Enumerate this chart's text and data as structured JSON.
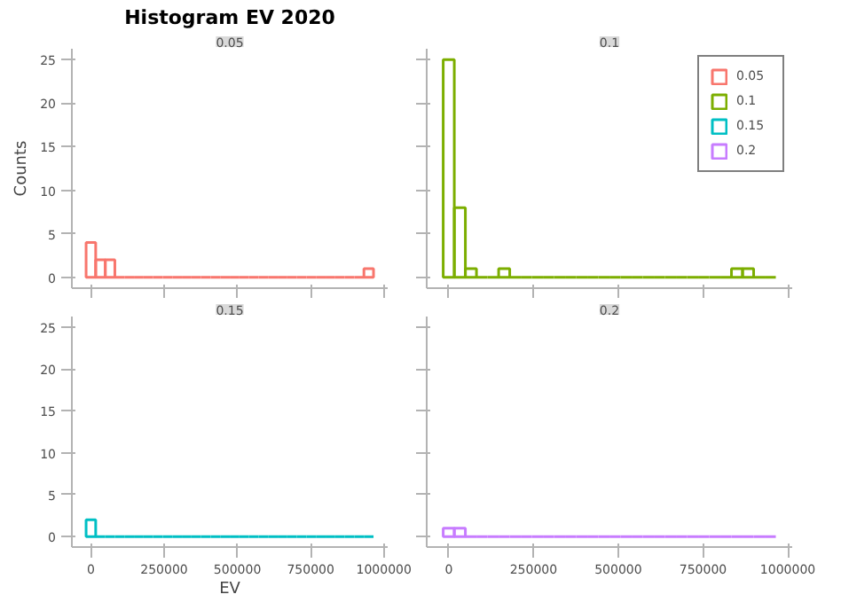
{
  "chart_data": [
    {
      "type": "histogram",
      "title": "Histogram EV 2020",
      "subtitle": "0.05",
      "ylabel": "Counts",
      "bins": [
        -16350,
        16350,
        49050,
        81750,
        114450,
        147150,
        179850,
        212550,
        245250,
        277950,
        310650,
        343350,
        376050,
        408750,
        441450,
        474150,
        506850,
        539550,
        572250,
        604950,
        637650,
        670350,
        703050,
        735750,
        768450,
        801150,
        833850,
        866550,
        899250,
        931950,
        964650
      ],
      "series": [
        {
          "name": "0.05",
          "color": "#f8766d",
          "values": [
            4,
            2,
            2,
            0,
            0,
            0,
            0,
            0,
            0,
            0,
            0,
            0,
            0,
            0,
            0,
            0,
            0,
            0,
            0,
            0,
            0,
            0,
            0,
            0,
            0,
            0,
            0,
            0,
            0,
            1
          ]
        }
      ],
      "xlim": [
        -65000,
        1013000
      ],
      "ylim": [
        -1.25,
        26.25
      ],
      "xticks": [
        0,
        250000,
        500000,
        750000,
        1000000
      ],
      "yticks": [
        0,
        5,
        10,
        15,
        20,
        25
      ],
      "tick_labels": "y",
      "grid": false
    },
    {
      "type": "histogram",
      "subtitle": "0.1",
      "legend": "top right",
      "bins": [
        -16350,
        16350,
        49050,
        81750,
        114450,
        147150,
        179850,
        212550,
        245250,
        277950,
        310650,
        343350,
        376050,
        408750,
        441450,
        474150,
        506850,
        539550,
        572250,
        604950,
        637650,
        670350,
        703050,
        735750,
        768450,
        801150,
        833850,
        866550,
        899250,
        931950,
        964650
      ],
      "series": [
        {
          "name": "0.1",
          "color": "#7cae00",
          "values": [
            25,
            8,
            1,
            0,
            0,
            1,
            0,
            0,
            0,
            0,
            0,
            0,
            0,
            0,
            0,
            0,
            0,
            0,
            0,
            0,
            0,
            0,
            0,
            0,
            0,
            0,
            1,
            1,
            0,
            0
          ]
        }
      ],
      "xlim": [
        -65000,
        1013000
      ],
      "ylim": [
        -1.25,
        26.25
      ],
      "xticks": [
        0,
        250000,
        500000,
        750000,
        1000000
      ],
      "yticks": [
        0,
        5,
        10,
        15,
        20,
        25
      ],
      "tick_labels": false,
      "grid": false
    },
    {
      "type": "histogram",
      "subtitle": "0.15",
      "xlabel": "EV",
      "bins": [
        -16350,
        16350,
        49050,
        81750,
        114450,
        147150,
        179850,
        212550,
        245250,
        277950,
        310650,
        343350,
        376050,
        408750,
        441450,
        474150,
        506850,
        539550,
        572250,
        604950,
        637650,
        670350,
        703050,
        735750,
        768450,
        801150,
        833850,
        866550,
        899250,
        931950,
        964650
      ],
      "series": [
        {
          "name": "0.15",
          "color": "#00bfc4",
          "values": [
            2,
            0,
            0,
            0,
            0,
            0,
            0,
            0,
            0,
            0,
            0,
            0,
            0,
            0,
            0,
            0,
            0,
            0,
            0,
            0,
            0,
            0,
            0,
            0,
            0,
            0,
            0,
            0,
            0,
            0
          ]
        }
      ],
      "xlim": [
        -65000,
        1013000
      ],
      "ylim": [
        -1.25,
        26.25
      ],
      "xticks": [
        0,
        250000,
        500000,
        750000,
        1000000
      ],
      "yticks": [
        0,
        5,
        10,
        15,
        20,
        25
      ],
      "grid": false
    },
    {
      "type": "histogram",
      "subtitle": "0.2",
      "bins": [
        -16350,
        16350,
        49050,
        81750,
        114450,
        147150,
        179850,
        212550,
        245250,
        277950,
        310650,
        343350,
        376050,
        408750,
        441450,
        474150,
        506850,
        539550,
        572250,
        604950,
        637650,
        670350,
        703050,
        735750,
        768450,
        801150,
        833850,
        866550,
        899250,
        931950,
        964650
      ],
      "series": [
        {
          "name": "0.2",
          "color": "#c77cff",
          "values": [
            1,
            1,
            0,
            0,
            0,
            0,
            0,
            0,
            0,
            0,
            0,
            0,
            0,
            0,
            0,
            0,
            0,
            0,
            0,
            0,
            0,
            0,
            0,
            0,
            0,
            0,
            0,
            0,
            0,
            0
          ]
        }
      ],
      "xlim": [
        -65000,
        1013000
      ],
      "ylim": [
        -1.25,
        26.25
      ],
      "xticks": [
        0,
        250000,
        500000,
        750000,
        1000000
      ],
      "yticks": [
        0,
        5,
        10,
        15,
        20,
        25
      ],
      "tick_labels": "x",
      "grid": false
    }
  ]
}
